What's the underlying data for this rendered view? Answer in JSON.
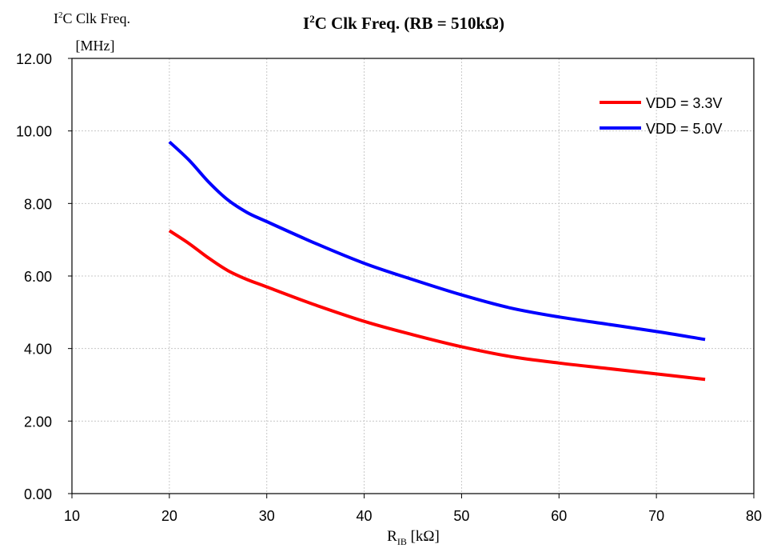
{
  "chart_data": {
    "type": "line",
    "title": {
      "prefix": "I",
      "sup": "2",
      "rest": "C Clk Freq. (RB = 510kΩ)"
    },
    "ylabel": {
      "line1_prefix": "I",
      "line1_sup": "2",
      "line1_rest": "C Clk Freq.",
      "line2": "[MHz]"
    },
    "xlabel": {
      "main": "R",
      "sub": "IB",
      "rest": " [kΩ]"
    },
    "xlim": [
      10,
      80
    ],
    "ylim": [
      0,
      12
    ],
    "x_ticks": [
      "10",
      "20",
      "30",
      "40",
      "50",
      "60",
      "70",
      "80"
    ],
    "y_ticks": [
      "0.00",
      "2.00",
      "4.00",
      "6.00",
      "8.00",
      "10.00",
      "12.00"
    ],
    "grid": true,
    "legend_position": "top-right",
    "series": [
      {
        "name": "VDD = 3.3V",
        "color": "#ff0000",
        "x": [
          20,
          22,
          24,
          26,
          28,
          30,
          35,
          40,
          45,
          50,
          55,
          60,
          65,
          70,
          75
        ],
        "y": [
          7.25,
          6.9,
          6.5,
          6.15,
          5.9,
          5.7,
          5.2,
          4.75,
          4.38,
          4.05,
          3.78,
          3.6,
          3.45,
          3.3,
          3.15
        ]
      },
      {
        "name": "VDD = 5.0V",
        "color": "#0000ff",
        "x": [
          20,
          22,
          24,
          26,
          28,
          30,
          35,
          40,
          45,
          50,
          55,
          60,
          65,
          70,
          75
        ],
        "y": [
          9.7,
          9.2,
          8.6,
          8.1,
          7.75,
          7.5,
          6.9,
          6.35,
          5.9,
          5.48,
          5.12,
          4.87,
          4.67,
          4.47,
          4.25
        ]
      }
    ]
  }
}
